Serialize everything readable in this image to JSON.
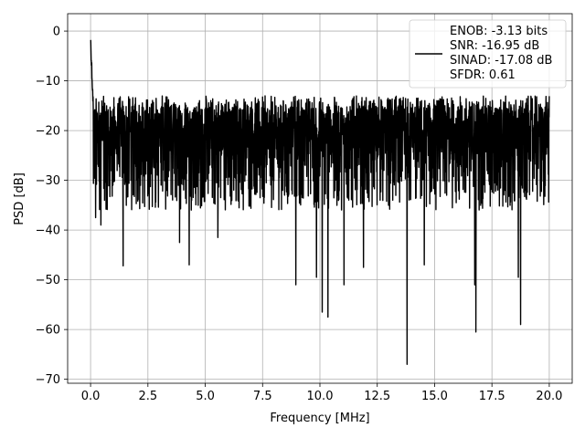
{
  "chart_data": {
    "type": "line",
    "title": "",
    "xlabel": "Frequency [MHz]",
    "ylabel": "PSD [dB]",
    "xlim": [
      -1.0,
      21.0
    ],
    "ylim": [
      -70.8,
      3.5
    ],
    "xticks": [
      0.0,
      2.5,
      5.0,
      7.5,
      10.0,
      12.5,
      15.0,
      17.5,
      20.0
    ],
    "xtick_labels": [
      "0.0",
      "2.5",
      "5.0",
      "7.5",
      "10.0",
      "12.5",
      "15.0",
      "17.5",
      "20.0"
    ],
    "yticks": [
      0,
      -10,
      -20,
      -30,
      -40,
      -50,
      -60,
      -70
    ],
    "ytick_labels": [
      "0",
      "−10",
      "−20",
      "−30",
      "−40",
      "−50",
      "−60",
      "−70"
    ],
    "grid": true,
    "legend_position": "top-right",
    "legend_entries": [
      "ENOB: -3.13 bits",
      "SNR: -16.95 dB",
      "SINAD: -17.08 dB",
      "SFDR: 0.61"
    ],
    "series": [
      {
        "color": "#000000",
        "x_range": [
          0.0,
          20.0
        ],
        "description_values": {
          "peak_at_dc": 0,
          "typical_upper_envelope": -13,
          "typical_lower_envelope": -36,
          "noise_floor_median": -25
        },
        "deep_nulls": [
          {
            "x": 0.22,
            "y": -37.5
          },
          {
            "x": 0.45,
            "y": -39.0
          },
          {
            "x": 1.42,
            "y": -47.2
          },
          {
            "x": 3.88,
            "y": -42.5
          },
          {
            "x": 4.3,
            "y": -47.0
          },
          {
            "x": 5.55,
            "y": -41.5
          },
          {
            "x": 8.95,
            "y": -51.0
          },
          {
            "x": 9.85,
            "y": -49.5
          },
          {
            "x": 10.1,
            "y": -56.5
          },
          {
            "x": 10.35,
            "y": -57.5
          },
          {
            "x": 11.05,
            "y": -51.0
          },
          {
            "x": 11.9,
            "y": -47.5
          },
          {
            "x": 13.8,
            "y": -67.0
          },
          {
            "x": 14.55,
            "y": -47.0
          },
          {
            "x": 16.75,
            "y": -51.0
          },
          {
            "x": 16.8,
            "y": -60.5
          },
          {
            "x": 18.75,
            "y": -59.0
          },
          {
            "x": 18.65,
            "y": -49.5
          }
        ]
      }
    ]
  }
}
